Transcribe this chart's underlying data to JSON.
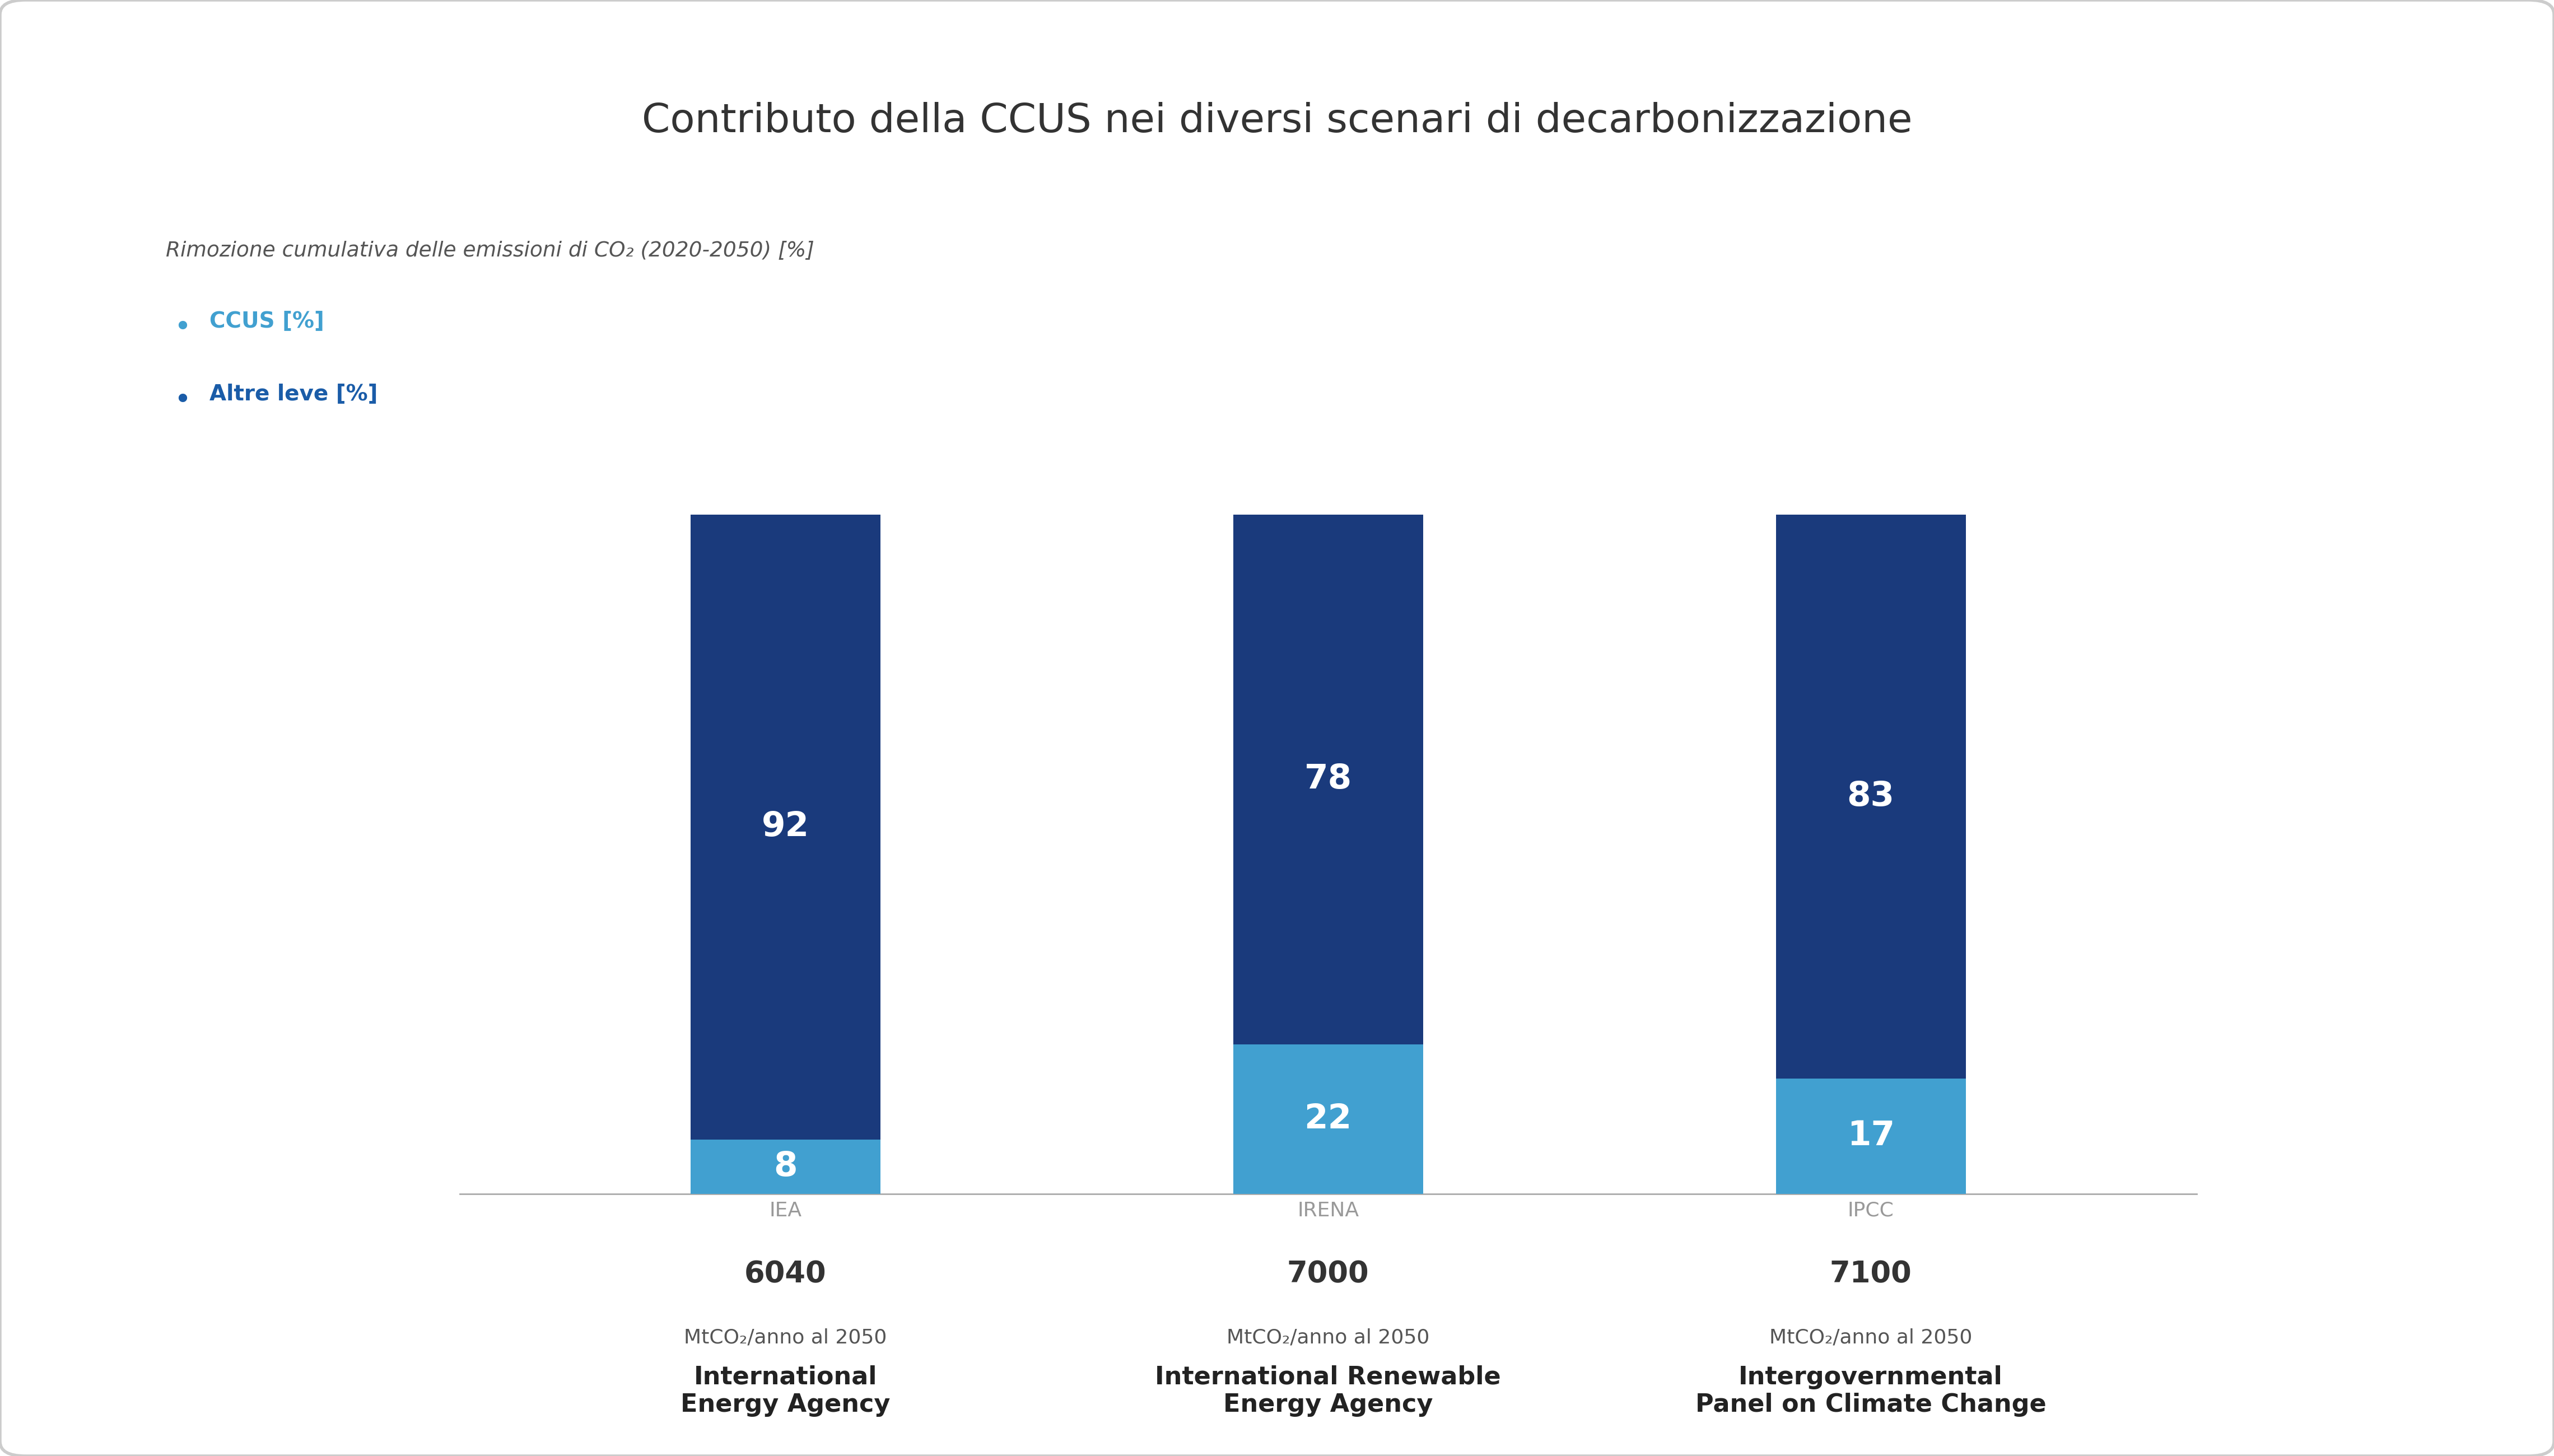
{
  "title": "Contributo della CCUS nei diversi scenari di decarbonizzazione",
  "subtitle": "Rimozione cumulativa delle emissioni di CO₂ (2020-2050) [%]",
  "legend_ccus": "CCUS [%]",
  "legend_altre": "Altre leve [%]",
  "categories": [
    "International\nEnergy Agency",
    "International Renewable\nEnergy Agency",
    "Intergovernmental\nPanel on Climate Change"
  ],
  "acronyms": [
    "IEA",
    "IRENA",
    "IPCC"
  ],
  "totals": [
    "6040",
    "7000",
    "7100"
  ],
  "unit_label": "MtCO₂/anno al 2050",
  "ccus_values": [
    8,
    22,
    17
  ],
  "altre_values": [
    92,
    78,
    83
  ],
  "color_ccus": "#41A0D0",
  "color_altre": "#1A3A7C",
  "color_title": "#333333",
  "color_subtitle": "#555555",
  "color_legend_ccus": "#41A0D0",
  "color_legend_altre": "#1A5CA8",
  "background_color": "#FFFFFF",
  "bar_width": 0.35,
  "ylim": [
    0,
    120
  ]
}
